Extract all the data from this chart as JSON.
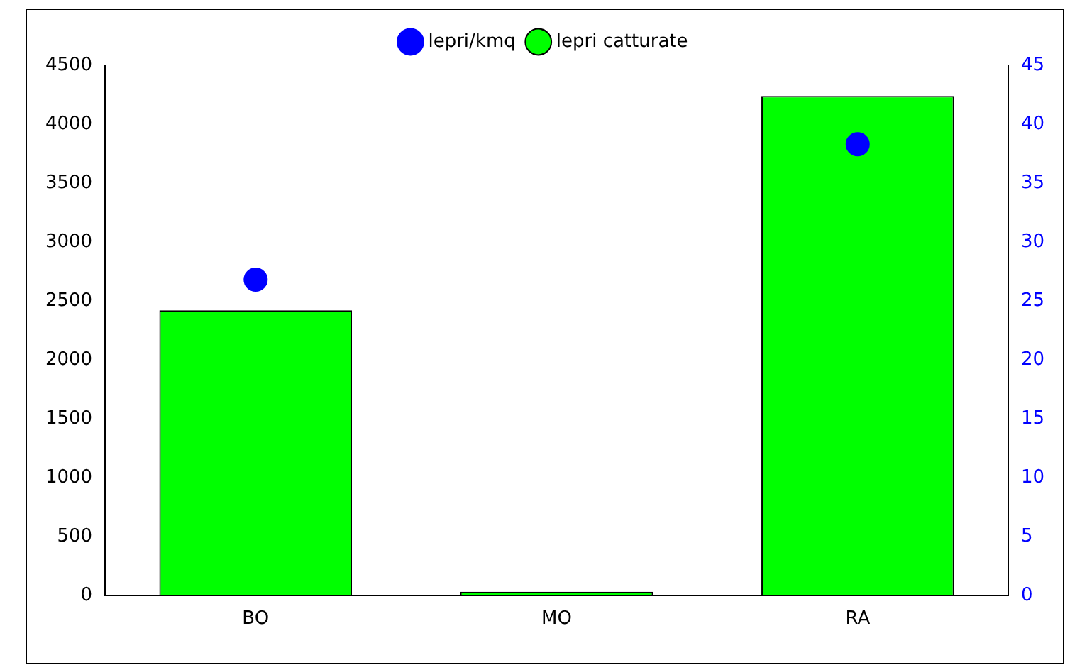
{
  "chart_data": {
    "type": "bar",
    "categories": [
      "BO",
      "MO",
      "RA"
    ],
    "series": [
      {
        "name": "lepri catturate",
        "color": "#00ff00",
        "values": [
          2420,
          30,
          4240
        ]
      },
      {
        "name": "lepri/kmq",
        "type": "scatter",
        "axis": "y2",
        "color": "#0000ff",
        "x": [
          "BO",
          "RA"
        ],
        "values": [
          26.8,
          38.3
        ]
      }
    ],
    "ylim": [
      0,
      4500
    ],
    "yticks": [
      0,
      500,
      1000,
      1500,
      2000,
      2500,
      3000,
      3500,
      4000,
      4500
    ],
    "y2lim": [
      0,
      45
    ],
    "y2ticks": [
      0,
      5,
      10,
      15,
      20,
      25,
      30,
      35,
      40,
      45
    ],
    "legend": "top",
    "marker": "circle"
  }
}
